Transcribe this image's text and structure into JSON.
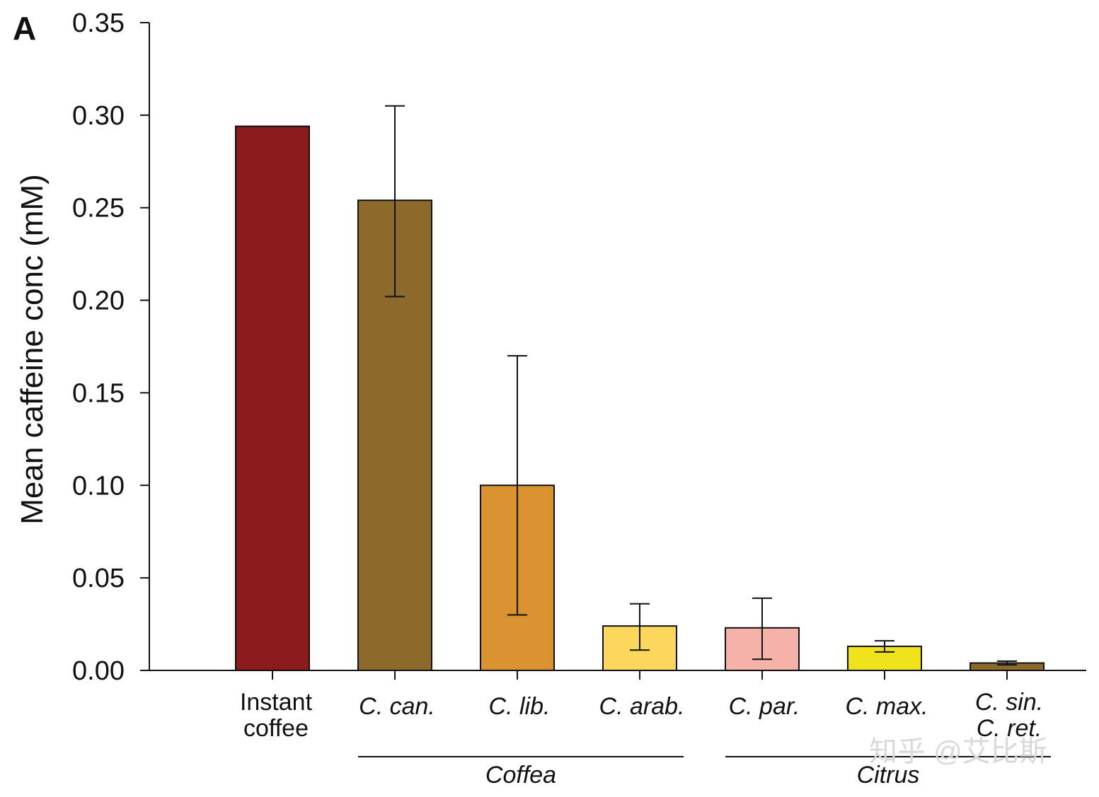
{
  "panel_label": "A",
  "watermark": "知乎 @艾比斯",
  "chart_data": {
    "type": "bar",
    "title": "",
    "xlabel": "",
    "ylabel": "Mean caffeine conc (mM)",
    "ylim": [
      0,
      0.35
    ],
    "yticks": [
      "0.00",
      "0.05",
      "0.10",
      "0.15",
      "0.20",
      "0.25",
      "0.30",
      "0.35"
    ],
    "grid": false,
    "categories": [
      {
        "lines": [
          "Instant",
          "coffee"
        ],
        "italic": false
      },
      {
        "lines": [
          "C. can."
        ],
        "italic": true
      },
      {
        "lines": [
          "C. lib."
        ],
        "italic": true
      },
      {
        "lines": [
          "C. arab."
        ],
        "italic": true
      },
      {
        "lines": [
          "C. par."
        ],
        "italic": true
      },
      {
        "lines": [
          "C. max."
        ],
        "italic": true
      },
      {
        "lines": [
          "C. sin.",
          "C. ret."
        ],
        "italic": true
      }
    ],
    "values": [
      0.294,
      0.254,
      0.1,
      0.024,
      0.023,
      0.013,
      0.004
    ],
    "error_low": [
      null,
      0.202,
      0.03,
      0.011,
      0.006,
      0.01,
      0.003
    ],
    "error_high": [
      null,
      0.305,
      0.17,
      0.036,
      0.039,
      0.016,
      0.005
    ],
    "colors": [
      "#8b1a1d",
      "#8c6a2c",
      "#d8922e",
      "#fbd85c",
      "#f4b2a8",
      "#f0e21a",
      "#8c6a2c"
    ],
    "groups": [
      {
        "label": "Coffea",
        "from": 1,
        "to": 3
      },
      {
        "label": "Citrus",
        "from": 4,
        "to": 6
      }
    ]
  }
}
